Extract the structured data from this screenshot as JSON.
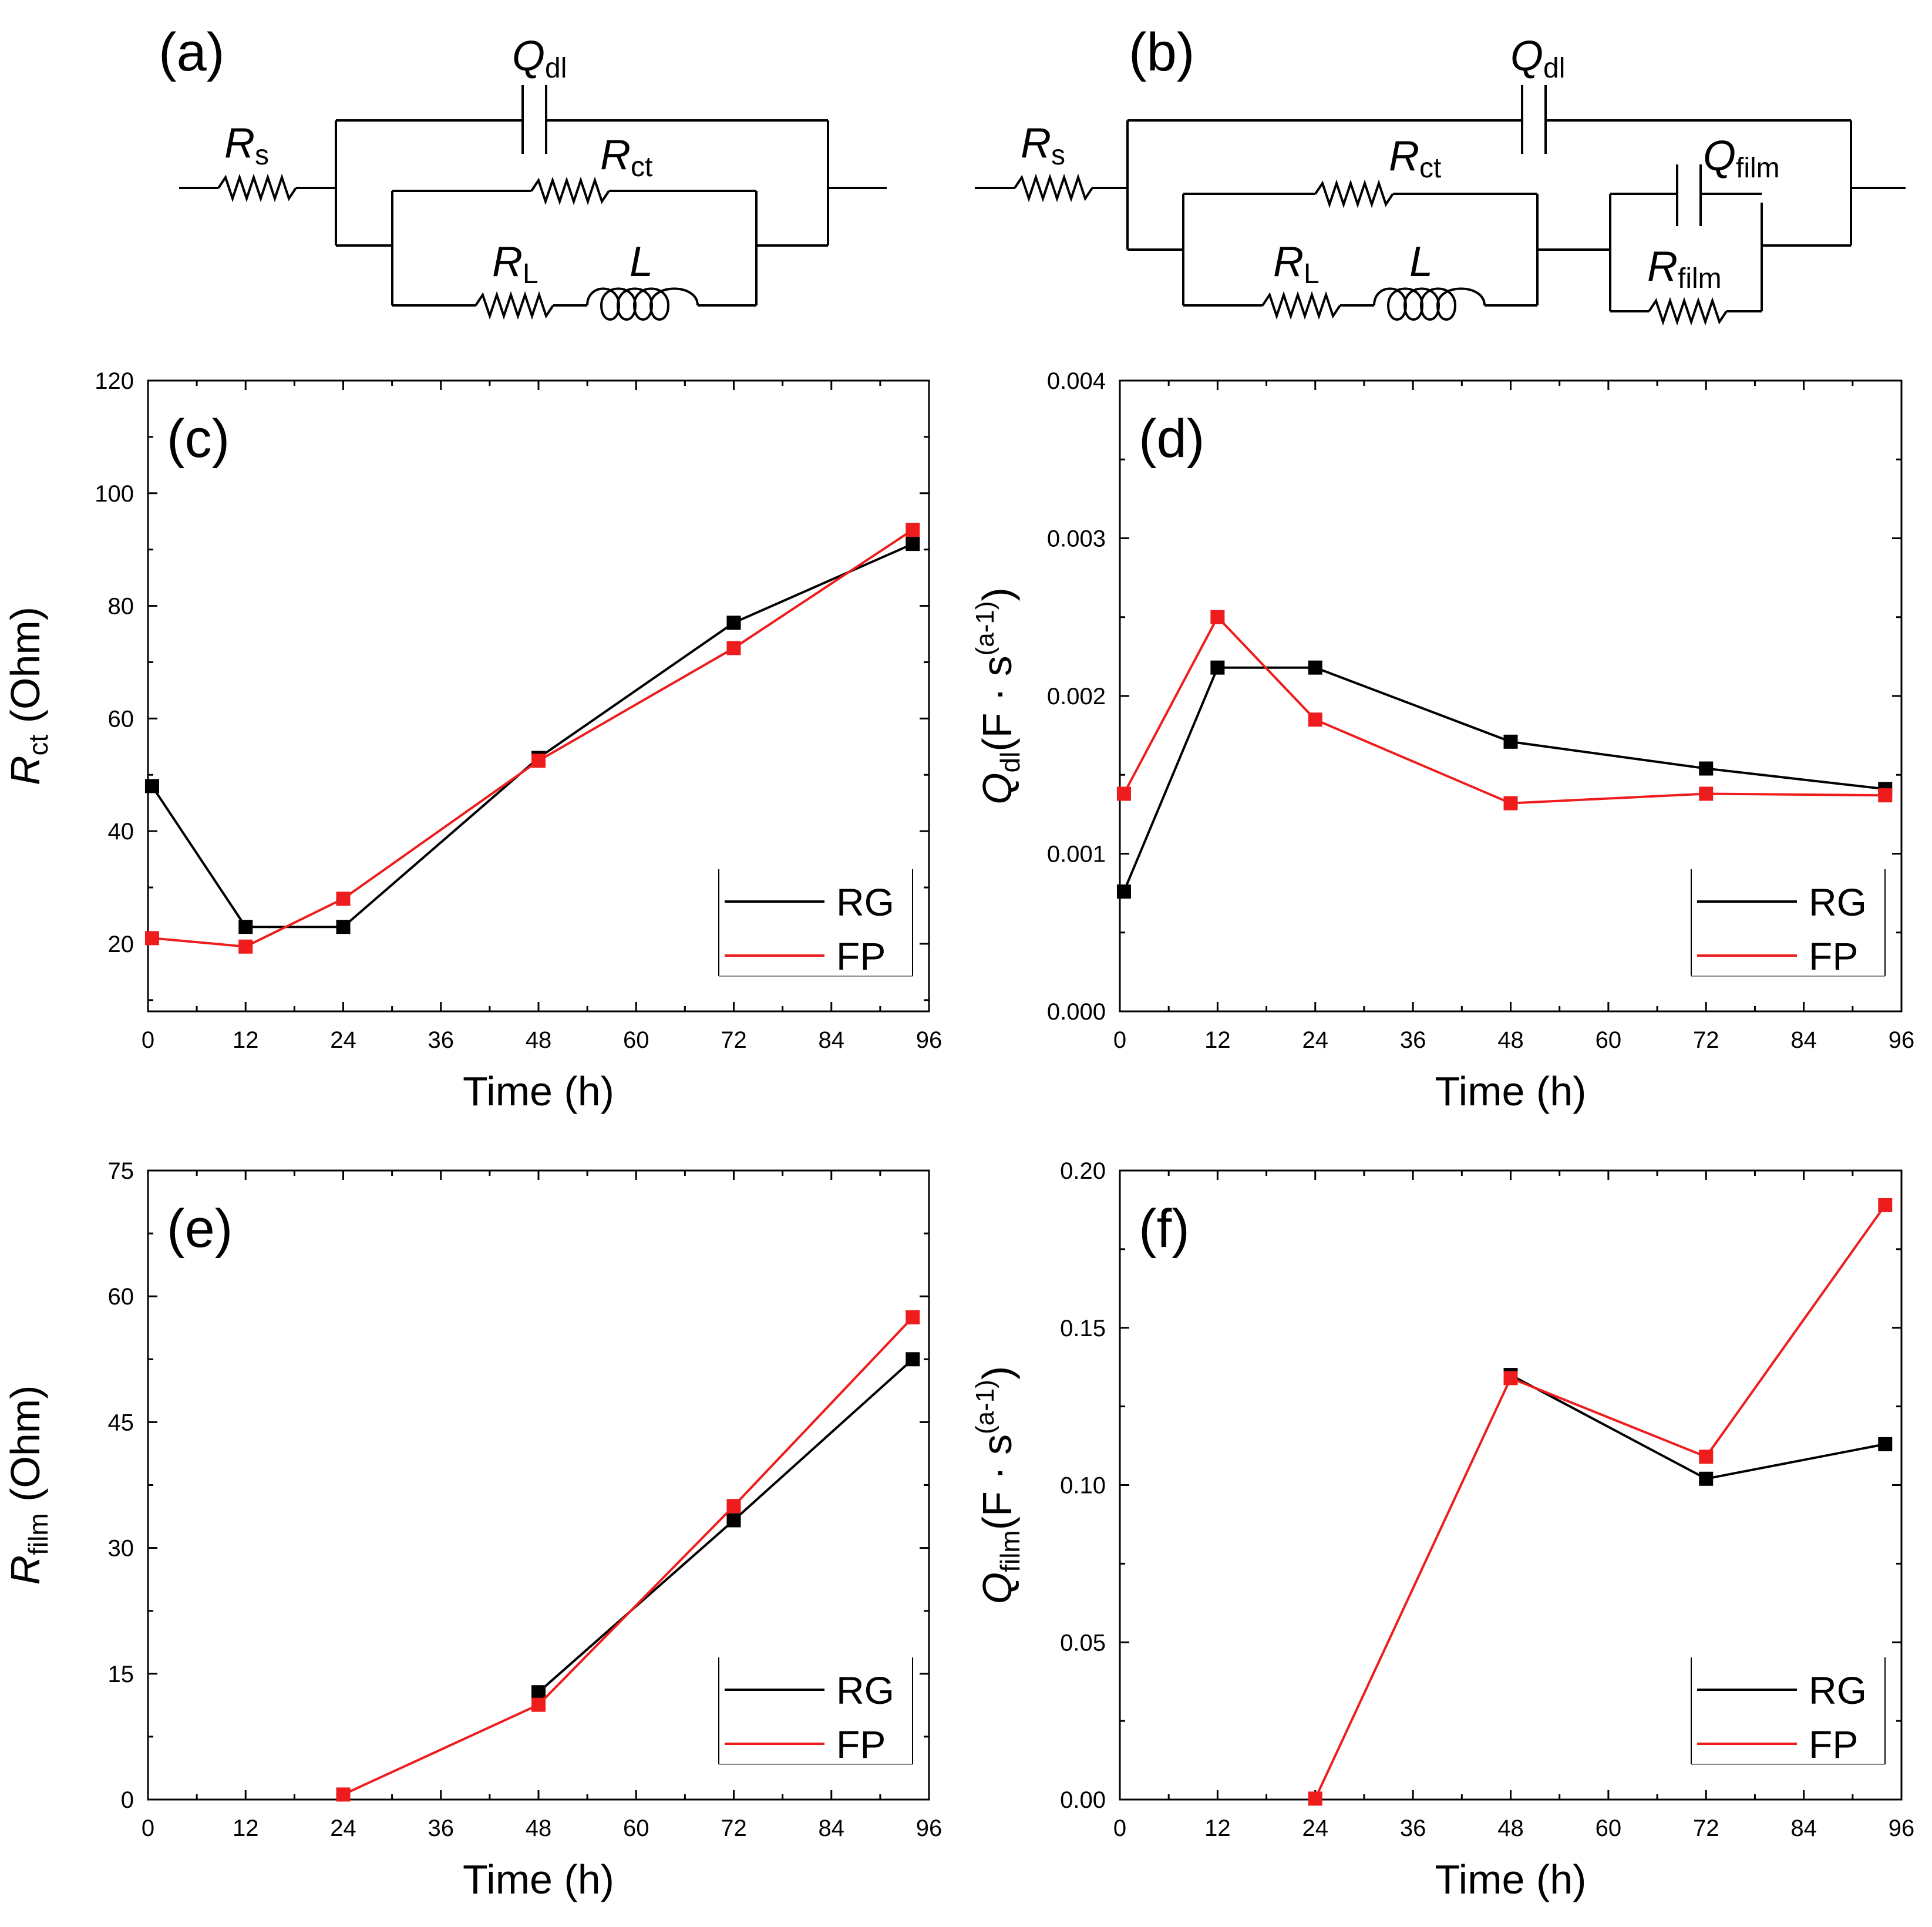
{
  "colors": {
    "rg": "#000000",
    "fp": "#ee1c1c",
    "axis": "#000000"
  },
  "circuits": [
    {
      "panel_label": "(a)",
      "labels": {
        "rs": {
          "main": "R",
          "sub": "s"
        },
        "qdl": {
          "main": "Q",
          "sub": "dl"
        },
        "rct": {
          "main": "R",
          "sub": "ct"
        },
        "rl": {
          "main": "R",
          "sub": "L"
        },
        "l": {
          "main": "L",
          "sub": ""
        }
      }
    },
    {
      "panel_label": "(b)",
      "labels": {
        "rs": {
          "main": "R",
          "sub": "s"
        },
        "qdl": {
          "main": "Q",
          "sub": "dl"
        },
        "rct": {
          "main": "R",
          "sub": "ct"
        },
        "rl": {
          "main": "R",
          "sub": "L"
        },
        "l": {
          "main": "L",
          "sub": ""
        },
        "qfilm": {
          "main": "Q",
          "sub": "film"
        },
        "rfilm": {
          "main": "R",
          "sub": "film"
        }
      }
    }
  ],
  "chart_data": [
    {
      "panel_label": "(c)",
      "type": "line",
      "xlabel": "Time (h)",
      "ylabel": {
        "main": "R",
        "sub": "ct",
        "rest": " (Ohm)"
      },
      "xlim": [
        0,
        96
      ],
      "ylim": [
        8,
        120
      ],
      "xticks": [
        0,
        12,
        24,
        36,
        48,
        60,
        72,
        84,
        96
      ],
      "yticks": [
        20,
        40,
        60,
        80,
        100,
        120
      ],
      "ytick_labels": [
        "20",
        "40",
        "60",
        "80",
        "100",
        "120"
      ],
      "legend_position": "bottom-right",
      "series": [
        {
          "name": "RG",
          "x": [
            0.5,
            12,
            24,
            48,
            72,
            94
          ],
          "y": [
            48,
            23,
            23,
            53,
            77,
            91
          ]
        },
        {
          "name": "FP",
          "x": [
            0.5,
            12,
            24,
            48,
            72,
            94
          ],
          "y": [
            21,
            19.5,
            28,
            52.5,
            72.5,
            93.5
          ]
        }
      ]
    },
    {
      "panel_label": "(d)",
      "type": "line",
      "xlabel": "Time (h)",
      "ylabel": {
        "main": "Q",
        "sub": "dl",
        "rest": "(F · s",
        "sup": "(a-1)",
        "close": ")"
      },
      "xlim": [
        0,
        96
      ],
      "ylim": [
        0,
        0.004
      ],
      "xticks": [
        0,
        12,
        24,
        36,
        48,
        60,
        72,
        84,
        96
      ],
      "yticks": [
        0,
        0.001,
        0.002,
        0.003,
        0.004
      ],
      "ytick_labels": [
        "0.000",
        "0.001",
        "0.002",
        "0.003",
        "0.004"
      ],
      "legend_position": "bottom-right",
      "series": [
        {
          "name": "RG",
          "x": [
            0.5,
            12,
            24,
            48,
            72,
            94
          ],
          "y": [
            0.00076,
            0.00218,
            0.00218,
            0.00171,
            0.00154,
            0.00141
          ]
        },
        {
          "name": "FP",
          "x": [
            0.5,
            12,
            24,
            48,
            72,
            94
          ],
          "y": [
            0.00138,
            0.0025,
            0.00185,
            0.00132,
            0.00138,
            0.00137
          ]
        }
      ]
    },
    {
      "panel_label": "(e)",
      "type": "line",
      "xlabel": "Time (h)",
      "ylabel": {
        "main": "R",
        "sub": "film",
        "rest": " (Ohm)"
      },
      "xlim": [
        0,
        96
      ],
      "ylim": [
        0,
        75
      ],
      "xticks": [
        0,
        12,
        24,
        36,
        48,
        60,
        72,
        84,
        96
      ],
      "yticks": [
        0,
        15,
        30,
        45,
        60,
        75
      ],
      "ytick_labels": [
        "0",
        "15",
        "30",
        "45",
        "60",
        "75"
      ],
      "legend_position": "bottom-right",
      "series": [
        {
          "name": "RG",
          "x": [
            48,
            72,
            94
          ],
          "y": [
            12.8,
            33.3,
            52.5
          ]
        },
        {
          "name": "FP",
          "x": [
            24,
            48,
            72,
            94
          ],
          "y": [
            0.6,
            11.3,
            35,
            57.5
          ]
        }
      ]
    },
    {
      "panel_label": "(f)",
      "type": "line",
      "xlabel": "Time (h)",
      "ylabel": {
        "main": "Q",
        "sub": "film",
        "rest": "(F · s",
        "sup": "(a-1)",
        "close": ")"
      },
      "xlim": [
        0,
        96
      ],
      "ylim": [
        0,
        0.2
      ],
      "xticks": [
        0,
        12,
        24,
        36,
        48,
        60,
        72,
        84,
        96
      ],
      "yticks": [
        0,
        0.05,
        0.1,
        0.15,
        0.2
      ],
      "ytick_labels": [
        "0.00",
        "0.05",
        "0.10",
        "0.15",
        "0.20"
      ],
      "legend_position": "bottom-right",
      "series": [
        {
          "name": "RG",
          "x": [
            48,
            72,
            94
          ],
          "y": [
            0.135,
            0.102,
            0.113
          ]
        },
        {
          "name": "FP",
          "x": [
            24,
            48,
            72,
            94
          ],
          "y": [
            0.0003,
            0.134,
            0.109,
            0.189
          ]
        }
      ]
    }
  ]
}
